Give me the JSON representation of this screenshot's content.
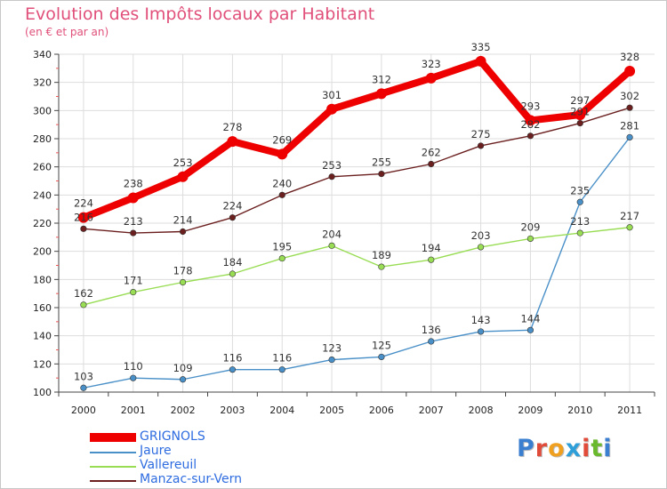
{
  "header": {
    "title": "Evolution des Impôts locaux par Habitant",
    "subtitle": "(en € et par an)"
  },
  "logo": {
    "text": "Proxiti",
    "letter_colors": [
      "#3a7fd0",
      "#e04b3a",
      "#f0a020",
      "#2e9fd8",
      "#e04b3a",
      "#6ab82c",
      "#3a7fd0"
    ]
  },
  "chart_data": {
    "type": "line",
    "title": "Evolution des Impôts locaux par Habitant",
    "subtitle": "(en € et par an)",
    "x": [
      "2000",
      "2001",
      "2002",
      "2003",
      "2004",
      "2005",
      "2006",
      "2007",
      "2008",
      "2009",
      "2010",
      "2011"
    ],
    "ylim": [
      100,
      340
    ],
    "yticks": [
      100,
      120,
      140,
      160,
      180,
      200,
      220,
      240,
      260,
      280,
      300,
      320,
      340
    ],
    "grid": true,
    "legend_position": "bottom-left",
    "series": [
      {
        "name": "GRIGNOLS",
        "color": "#ee0000",
        "values": [
          224,
          238,
          253,
          278,
          269,
          301,
          312,
          323,
          335,
          293,
          297,
          328
        ]
      },
      {
        "name": "Jaure",
        "color": "#4a90c8",
        "values": [
          103,
          110,
          109,
          116,
          116,
          123,
          125,
          136,
          143,
          144,
          235,
          281
        ]
      },
      {
        "name": "Vallereuil",
        "color": "#99dd55",
        "values": [
          162,
          171,
          178,
          184,
          195,
          204,
          189,
          194,
          203,
          209,
          213,
          217
        ]
      },
      {
        "name": "Manzac-sur-Vern",
        "color": "#6b1f1f",
        "values": [
          216,
          213,
          214,
          224,
          240,
          253,
          255,
          262,
          275,
          282,
          291,
          302
        ]
      }
    ],
    "data_labels": [
      [
        "224",
        "238",
        "253",
        "278",
        "269",
        "301",
        "312",
        "323",
        "335",
        "293",
        "297",
        "328"
      ],
      [
        "103",
        "110",
        "109",
        "116",
        "116",
        "123",
        "125",
        "136",
        "143",
        "144",
        "235",
        "281"
      ],
      [
        "162",
        "171",
        "178",
        "184",
        "195",
        "204",
        "189",
        "194",
        "203",
        "209",
        "213",
        "217"
      ],
      [
        "216",
        "213",
        "214",
        "224",
        "240",
        "253",
        "255",
        "262",
        "275",
        "282",
        "291",
        "302"
      ]
    ]
  }
}
